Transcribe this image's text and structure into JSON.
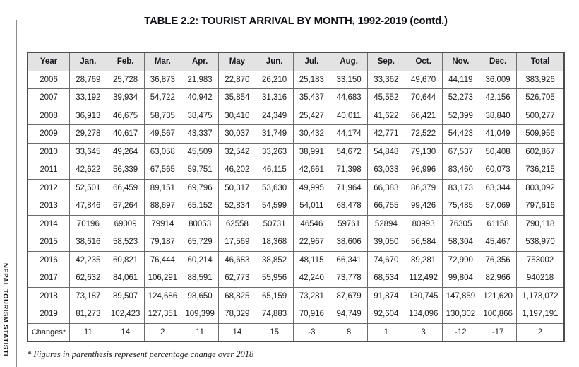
{
  "sidebar": {
    "text": "NEPAL TOURISM STATISTI"
  },
  "title": "TABLE 2.2: TOURIST ARRIVAL BY MONTH, 1992-2019 (contd.)",
  "footnote": "* Figures in parenthesis represent percentage change over 2018",
  "colors": {
    "header_bg": "#e3e3e3",
    "grid_border": "#6d6d6d",
    "outer_border": "#4d4d4d",
    "text": "#1b1b1b"
  },
  "chart_data": {
    "type": "table",
    "title": "TABLE 2.2: TOURIST ARRIVAL BY MONTH, 1992-2019 (contd.)",
    "columns": [
      "Year",
      "Jan.",
      "Feb.",
      "Mar.",
      "Apr.",
      "May",
      "Jun.",
      "Jul.",
      "Aug.",
      "Sep.",
      "Oct.",
      "Nov.",
      "Dec.",
      "Total"
    ],
    "rows": [
      [
        "2006",
        "28,769",
        "25,728",
        "36,873",
        "21,983",
        "22,870",
        "26,210",
        "25,183",
        "33,150",
        "33,362",
        "49,670",
        "44,119",
        "36,009",
        "383,926"
      ],
      [
        "2007",
        "33,192",
        "39,934",
        "54,722",
        "40,942",
        "35,854",
        "31,316",
        "35,437",
        "44,683",
        "45,552",
        "70,644",
        "52,273",
        "42,156",
        "526,705"
      ],
      [
        "2008",
        "36,913",
        "46,675",
        "58,735",
        "38,475",
        "30,410",
        "24,349",
        "25,427",
        "40,011",
        "41,622",
        "66,421",
        "52,399",
        "38,840",
        "500,277"
      ],
      [
        "2009",
        "29,278",
        "40,617",
        "49,567",
        "43,337",
        "30,037",
        "31,749",
        "30,432",
        "44,174",
        "42,771",
        "72,522",
        "54,423",
        "41,049",
        "509,956"
      ],
      [
        "2010",
        "33,645",
        "49,264",
        "63,058",
        "45,509",
        "32,542",
        "33,263",
        "38,991",
        "54,672",
        "54,848",
        "79,130",
        "67,537",
        "50,408",
        "602,867"
      ],
      [
        "2011",
        "42,622",
        "56,339",
        "67,565",
        "59,751",
        "46,202",
        "46,115",
        "42,661",
        "71,398",
        "63,033",
        "96,996",
        "83,460",
        "60,073",
        "736,215"
      ],
      [
        "2012",
        "52,501",
        "66,459",
        "89,151",
        "69,796",
        "50,317",
        "53,630",
        "49,995",
        "71,964",
        "66,383",
        "86,379",
        "83,173",
        "63,344",
        "803,092"
      ],
      [
        "2013",
        "47,846",
        "67,264",
        "88,697",
        "65,152",
        "52,834",
        "54,599",
        "54,011",
        "68,478",
        "66,755",
        "99,426",
        "75,485",
        "57,069",
        "797,616"
      ],
      [
        "2014",
        "70196",
        "69009",
        "79914",
        "80053",
        "62558",
        "50731",
        "46546",
        "59761",
        "52894",
        "80993",
        "76305",
        "61158",
        "790,118"
      ],
      [
        "2015",
        "38,616",
        "58,523",
        "79,187",
        "65,729",
        "17,569",
        "18,368",
        "22,967",
        "38,606",
        "39,050",
        "56,584",
        "58,304",
        "45,467",
        "538,970"
      ],
      [
        "2016",
        "42,235",
        "60,821",
        "76,444",
        "60,214",
        "46,683",
        "38,852",
        "48,115",
        "66,341",
        "74,670",
        "89,281",
        "72,990",
        "76,356",
        "753002"
      ],
      [
        "2017",
        "62,632",
        "84,061",
        "106,291",
        "88,591",
        "62,773",
        "55,956",
        "42,240",
        "73,778",
        "68,634",
        "112,492",
        "99,804",
        "82,966",
        "940218"
      ],
      [
        "2018",
        "73,187",
        "89,507",
        "124,686",
        "98,650",
        "68,825",
        "65,159",
        "73,281",
        "87,679",
        "91,874",
        "130,745",
        "147,859",
        "121,620",
        "1,173,072"
      ],
      [
        "2019",
        "81,273",
        "102,423",
        "127,351",
        "109,399",
        "78,329",
        "74,883",
        "70,916",
        "94,749",
        "92,604",
        "134,096",
        "130,302",
        "100,866",
        "1,197,191"
      ],
      [
        "Changes*",
        "11",
        "14",
        "2",
        "11",
        "14",
        "15",
        "-3",
        "8",
        "1",
        "3",
        "-12",
        "-17",
        "2"
      ]
    ]
  }
}
